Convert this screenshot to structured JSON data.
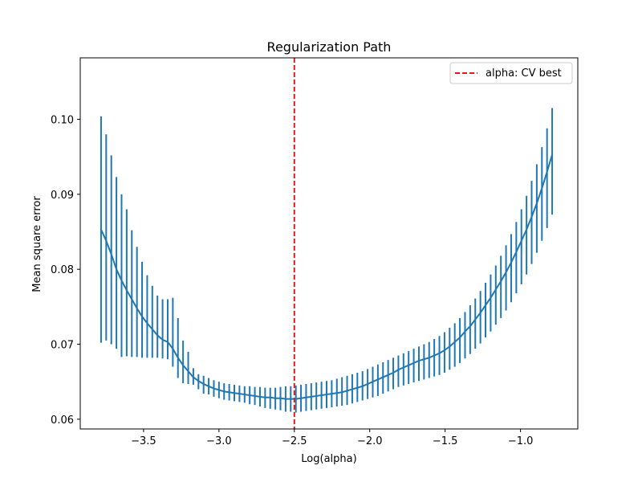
{
  "chart_data": {
    "type": "line",
    "title": "Regularization Path",
    "xlabel": "Log(alpha)",
    "ylabel": "Mean square error",
    "xlim": [
      -3.92,
      -0.62
    ],
    "ylim": [
      0.0587,
      0.1082
    ],
    "xticks": [
      {
        "value": -3.5,
        "label": "−3.5"
      },
      {
        "value": -3.0,
        "label": "−3.0"
      },
      {
        "value": -2.5,
        "label": "−2.5"
      },
      {
        "value": -2.0,
        "label": "−2.0"
      },
      {
        "value": -1.5,
        "label": "−1.5"
      },
      {
        "value": -1.0,
        "label": "−1.0"
      }
    ],
    "yticks": [
      {
        "value": 0.06,
        "label": "0.06"
      },
      {
        "value": 0.07,
        "label": "0.07"
      },
      {
        "value": 0.08,
        "label": "0.08"
      },
      {
        "value": 0.09,
        "label": "0.09"
      },
      {
        "value": 0.1,
        "label": "0.10"
      }
    ],
    "grid": false,
    "legend": {
      "placement": "top-right",
      "entries": [
        {
          "label": "alpha: CV best",
          "color": "#e31a1c",
          "style": "dashed"
        }
      ]
    },
    "series": [
      {
        "color": "#1f77b4",
        "error_bars": true,
        "x": [
          -3.782,
          -3.748,
          -3.714,
          -3.68,
          -3.646,
          -3.612,
          -3.578,
          -3.544,
          -3.51,
          -3.476,
          -3.442,
          -3.408,
          -3.374,
          -3.34,
          -3.306,
          -3.272,
          -3.238,
          -3.204,
          -3.17,
          -3.136,
          -3.102,
          -3.068,
          -3.034,
          -3.0,
          -2.966,
          -2.932,
          -2.898,
          -2.864,
          -2.83,
          -2.796,
          -2.762,
          -2.728,
          -2.694,
          -2.66,
          -2.626,
          -2.592,
          -2.558,
          -2.524,
          -2.49,
          -2.456,
          -2.422,
          -2.388,
          -2.354,
          -2.32,
          -2.286,
          -2.252,
          -2.218,
          -2.184,
          -2.15,
          -2.116,
          -2.082,
          -2.048,
          -2.014,
          -1.98,
          -1.946,
          -1.912,
          -1.878,
          -1.844,
          -1.81,
          -1.776,
          -1.742,
          -1.708,
          -1.674,
          -1.64,
          -1.606,
          -1.572,
          -1.538,
          -1.504,
          -1.47,
          -1.436,
          -1.402,
          -1.368,
          -1.334,
          -1.3,
          -1.266,
          -1.232,
          -1.198,
          -1.164,
          -1.13,
          -1.096,
          -1.062,
          -1.028,
          -0.994,
          -0.96,
          -0.926,
          -0.892,
          -0.858,
          -0.824,
          -0.79
        ],
        "mean": [
          0.0853,
          0.0838,
          0.082,
          0.08,
          0.0785,
          0.0772,
          0.076,
          0.0748,
          0.0737,
          0.0728,
          0.072,
          0.0712,
          0.0706,
          0.0703,
          0.0694,
          0.0682,
          0.0672,
          0.0664,
          0.0656,
          0.0651,
          0.0647,
          0.0644,
          0.0641,
          0.0639,
          0.0637,
          0.0636,
          0.0635,
          0.0634,
          0.0633,
          0.0632,
          0.0631,
          0.063,
          0.0629,
          0.0629,
          0.0628,
          0.0628,
          0.0627,
          0.0627,
          0.0627,
          0.0628,
          0.0629,
          0.063,
          0.0631,
          0.0632,
          0.0633,
          0.0634,
          0.0635,
          0.0636,
          0.0638,
          0.064,
          0.0642,
          0.0644,
          0.0647,
          0.065,
          0.0653,
          0.0656,
          0.0659,
          0.0662,
          0.0666,
          0.0669,
          0.0672,
          0.0675,
          0.0678,
          0.068,
          0.0682,
          0.0685,
          0.0688,
          0.0692,
          0.0697,
          0.0703,
          0.0709,
          0.0717,
          0.0724,
          0.0733,
          0.0742,
          0.0752,
          0.0762,
          0.0773,
          0.0784,
          0.0796,
          0.0809,
          0.0823,
          0.0838,
          0.0853,
          0.087,
          0.0888,
          0.0908,
          0.093,
          0.0953
        ],
        "low": [
          0.0702,
          0.0705,
          0.07,
          0.0694,
          0.0683,
          0.0684,
          0.0683,
          0.0683,
          0.0682,
          0.0682,
          0.0682,
          0.0682,
          0.0681,
          0.068,
          0.067,
          0.0655,
          0.0648,
          0.0647,
          0.0646,
          0.064,
          0.0634,
          0.0633,
          0.063,
          0.0628,
          0.0626,
          0.0625,
          0.0624,
          0.0623,
          0.0622,
          0.062,
          0.0619,
          0.0617,
          0.0615,
          0.0614,
          0.0613,
          0.0612,
          0.061,
          0.061,
          0.0609,
          0.061,
          0.0611,
          0.0612,
          0.0613,
          0.0614,
          0.0615,
          0.0616,
          0.0617,
          0.0618,
          0.0619,
          0.0621,
          0.0623,
          0.0625,
          0.0627,
          0.0629,
          0.0631,
          0.0634,
          0.0637,
          0.064,
          0.0643,
          0.0645,
          0.0647,
          0.0649,
          0.0651,
          0.0653,
          0.0655,
          0.0657,
          0.0659,
          0.0662,
          0.0666,
          0.067,
          0.0675,
          0.0681,
          0.0687,
          0.0694,
          0.0701,
          0.0709,
          0.0717,
          0.0726,
          0.0735,
          0.0745,
          0.0756,
          0.0768,
          0.078,
          0.0793,
          0.0807,
          0.0822,
          0.0838,
          0.0855,
          0.0873
        ],
        "high": [
          0.1004,
          0.098,
          0.0952,
          0.0923,
          0.09,
          0.088,
          0.0852,
          0.083,
          0.081,
          0.0792,
          0.0778,
          0.0765,
          0.076,
          0.076,
          0.0762,
          0.0735,
          0.0705,
          0.069,
          0.0668,
          0.066,
          0.0658,
          0.0655,
          0.0652,
          0.065,
          0.0648,
          0.0647,
          0.0646,
          0.0645,
          0.0644,
          0.0644,
          0.0643,
          0.0643,
          0.0642,
          0.0642,
          0.0642,
          0.0643,
          0.0644,
          0.0644,
          0.0645,
          0.0646,
          0.0647,
          0.0648,
          0.0649,
          0.065,
          0.0651,
          0.0652,
          0.0654,
          0.0656,
          0.0658,
          0.066,
          0.0662,
          0.0664,
          0.0667,
          0.067,
          0.0673,
          0.0676,
          0.0679,
          0.0682,
          0.0685,
          0.0688,
          0.0691,
          0.0694,
          0.0697,
          0.07,
          0.0703,
          0.0707,
          0.0711,
          0.0716,
          0.0722,
          0.0728,
          0.0735,
          0.0743,
          0.0752,
          0.0761,
          0.0771,
          0.0782,
          0.0793,
          0.0805,
          0.0818,
          0.0832,
          0.0847,
          0.0863,
          0.088,
          0.0898,
          0.0918,
          0.094,
          0.0963,
          0.0988,
          0.1015
        ]
      }
    ],
    "vlines": [
      {
        "x": -2.5,
        "color": "#e31a1c",
        "style": "dashed",
        "label": "alpha: CV best"
      }
    ]
  }
}
